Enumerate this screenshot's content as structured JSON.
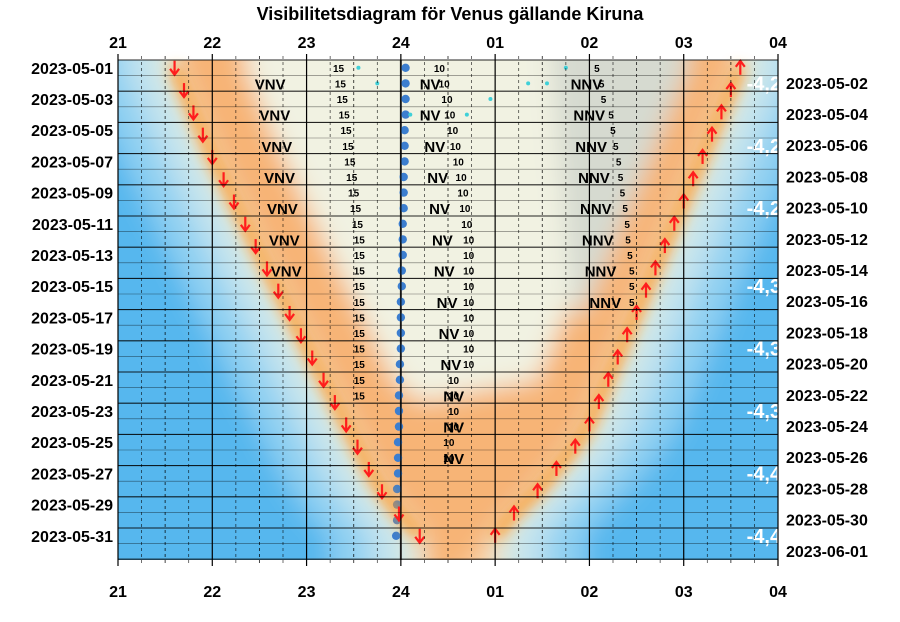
{
  "chart_data": {
    "type": "visibility-diagram",
    "title": "Visibilitetsdiagram för Venus gällande Kiruna",
    "hour_labels": [
      "21",
      "22",
      "23",
      "24",
      "01",
      "02",
      "03",
      "04"
    ],
    "left_dates": [
      "2023-05-01",
      "2023-05-03",
      "2023-05-05",
      "2023-05-07",
      "2023-05-09",
      "2023-05-11",
      "2023-05-13",
      "2023-05-15",
      "2023-05-17",
      "2023-05-19",
      "2023-05-21",
      "2023-05-23",
      "2023-05-25",
      "2023-05-27",
      "2023-05-29",
      "2023-05-31"
    ],
    "right_dates": [
      "2023-05-02",
      "2023-05-04",
      "2023-05-06",
      "2023-05-08",
      "2023-05-10",
      "2023-05-12",
      "2023-05-14",
      "2023-05-16",
      "2023-05-18",
      "2023-05-20",
      "2023-05-22",
      "2023-05-24",
      "2023-05-26",
      "2023-05-28",
      "2023-05-30",
      "2023-06-01"
    ],
    "sunset_hour": [
      21.6,
      21.7,
      21.8,
      21.9,
      22.0,
      22.12,
      22.23,
      22.35,
      22.46,
      22.58,
      22.7,
      22.82,
      22.94,
      23.06,
      23.18,
      23.3,
      23.42,
      23.54,
      23.66,
      23.8,
      23.98,
      24.2
    ],
    "sunrise_hour": [
      27.6,
      27.5,
      27.4,
      27.3,
      27.2,
      27.1,
      27.0,
      26.9,
      26.8,
      26.7,
      26.6,
      26.5,
      26.4,
      26.3,
      26.2,
      26.1,
      26.0,
      25.85,
      25.65,
      25.45,
      25.2,
      25.0
    ],
    "venus_set_hour": [
      24.05,
      24.05,
      24.05,
      24.05,
      24.04,
      24.04,
      24.04,
      24.03,
      24.03,
      24.03,
      24.02,
      24.02,
      24.02,
      24.01,
      24.01,
      24.0,
      24.0,
      24.0,
      24.0,
      23.99,
      23.99,
      23.98,
      23.98,
      23.98,
      23.97,
      23.97,
      23.97,
      23.96,
      23.96,
      23.96,
      23.95
    ],
    "directions": [
      {
        "label": "VNV",
        "hour": 22.45,
        "day": 2
      },
      {
        "label": "VNV",
        "hour": 22.5,
        "day": 4
      },
      {
        "label": "VNV",
        "hour": 22.52,
        "day": 6
      },
      {
        "label": "VNV",
        "hour": 22.55,
        "day": 8
      },
      {
        "label": "VNV",
        "hour": 22.58,
        "day": 10
      },
      {
        "label": "VNV",
        "hour": 22.6,
        "day": 12
      },
      {
        "label": "VNV",
        "hour": 22.62,
        "day": 14
      },
      {
        "label": "NV",
        "hour": 24.2,
        "day": 2
      },
      {
        "label": "NV",
        "hour": 24.2,
        "day": 4
      },
      {
        "label": "NV",
        "hour": 24.25,
        "day": 6
      },
      {
        "label": "NV",
        "hour": 24.28,
        "day": 8
      },
      {
        "label": "NV",
        "hour": 24.3,
        "day": 10
      },
      {
        "label": "NV",
        "hour": 24.33,
        "day": 12
      },
      {
        "label": "NV",
        "hour": 24.35,
        "day": 14
      },
      {
        "label": "NV",
        "hour": 24.38,
        "day": 16
      },
      {
        "label": "NV",
        "hour": 24.4,
        "day": 18
      },
      {
        "label": "NV",
        "hour": 24.42,
        "day": 20
      },
      {
        "label": "NV",
        "hour": 24.45,
        "day": 22
      },
      {
        "label": "NV",
        "hour": 24.45,
        "day": 24
      },
      {
        "label": "NV",
        "hour": 24.45,
        "day": 26
      },
      {
        "label": "NNV",
        "hour": 25.8,
        "day": 2
      },
      {
        "label": "NNV",
        "hour": 25.83,
        "day": 4
      },
      {
        "label": "NNV",
        "hour": 25.85,
        "day": 6
      },
      {
        "label": "NNV",
        "hour": 25.88,
        "day": 8
      },
      {
        "label": "NNV",
        "hour": 25.9,
        "day": 10
      },
      {
        "label": "NNV",
        "hour": 25.92,
        "day": 12
      },
      {
        "label": "NNV",
        "hour": 25.95,
        "day": 14
      },
      {
        "label": "NNV",
        "hour": 26.0,
        "day": 16
      }
    ],
    "altitudes": [
      {
        "label": "15",
        "hour": 23.28,
        "day": 1
      },
      {
        "label": "15",
        "hour": 23.3,
        "day": 2
      },
      {
        "label": "15",
        "hour": 23.32,
        "day": 3
      },
      {
        "label": "15",
        "hour": 23.34,
        "day": 4
      },
      {
        "label": "15",
        "hour": 23.36,
        "day": 5
      },
      {
        "label": "15",
        "hour": 23.38,
        "day": 6
      },
      {
        "label": "15",
        "hour": 23.4,
        "day": 7
      },
      {
        "label": "15",
        "hour": 23.42,
        "day": 8
      },
      {
        "label": "15",
        "hour": 23.44,
        "day": 9
      },
      {
        "label": "15",
        "hour": 23.46,
        "day": 10
      },
      {
        "label": "15",
        "hour": 23.48,
        "day": 11
      },
      {
        "label": "15",
        "hour": 23.5,
        "day": 12
      },
      {
        "label": "15",
        "hour": 23.5,
        "day": 13
      },
      {
        "label": "15",
        "hour": 23.5,
        "day": 14
      },
      {
        "label": "15",
        "hour": 23.5,
        "day": 15
      },
      {
        "label": "15",
        "hour": 23.5,
        "day": 16
      },
      {
        "label": "15",
        "hour": 23.5,
        "day": 17
      },
      {
        "label": "15",
        "hour": 23.5,
        "day": 18
      },
      {
        "label": "15",
        "hour": 23.5,
        "day": 19
      },
      {
        "label": "15",
        "hour": 23.5,
        "day": 20
      },
      {
        "label": "15",
        "hour": 23.5,
        "day": 21
      },
      {
        "label": "15",
        "hour": 23.5,
        "day": 22
      },
      {
        "label": "10",
        "hour": 24.35,
        "day": 1
      },
      {
        "label": "10",
        "hour": 24.4,
        "day": 2
      },
      {
        "label": "10",
        "hour": 24.43,
        "day": 3
      },
      {
        "label": "10",
        "hour": 24.46,
        "day": 4
      },
      {
        "label": "10",
        "hour": 24.49,
        "day": 5
      },
      {
        "label": "10",
        "hour": 24.52,
        "day": 6
      },
      {
        "label": "10",
        "hour": 24.55,
        "day": 7
      },
      {
        "label": "10",
        "hour": 24.58,
        "day": 8
      },
      {
        "label": "10",
        "hour": 24.6,
        "day": 9
      },
      {
        "label": "10",
        "hour": 24.62,
        "day": 10
      },
      {
        "label": "10",
        "hour": 24.64,
        "day": 11
      },
      {
        "label": "10",
        "hour": 24.66,
        "day": 12
      },
      {
        "label": "10",
        "hour": 24.66,
        "day": 13
      },
      {
        "label": "10",
        "hour": 24.66,
        "day": 14
      },
      {
        "label": "10",
        "hour": 24.66,
        "day": 15
      },
      {
        "label": "10",
        "hour": 24.66,
        "day": 16
      },
      {
        "label": "10",
        "hour": 24.66,
        "day": 17
      },
      {
        "label": "10",
        "hour": 24.66,
        "day": 18
      },
      {
        "label": "10",
        "hour": 24.66,
        "day": 19
      },
      {
        "label": "10",
        "hour": 24.66,
        "day": 20
      },
      {
        "label": "10",
        "hour": 24.5,
        "day": 21
      },
      {
        "label": "10",
        "hour": 24.5,
        "day": 22
      },
      {
        "label": "10",
        "hour": 24.5,
        "day": 23
      },
      {
        "label": "10",
        "hour": 24.5,
        "day": 24
      },
      {
        "label": "10",
        "hour": 24.45,
        "day": 25
      },
      {
        "label": "10",
        "hour": 24.45,
        "day": 26
      },
      {
        "label": "5",
        "hour": 26.05,
        "day": 1
      },
      {
        "label": "5",
        "hour": 26.1,
        "day": 2
      },
      {
        "label": "5",
        "hour": 26.12,
        "day": 3
      },
      {
        "label": "5",
        "hour": 26.2,
        "day": 4
      },
      {
        "label": "5",
        "hour": 26.22,
        "day": 5
      },
      {
        "label": "5",
        "hour": 26.25,
        "day": 6
      },
      {
        "label": "5",
        "hour": 26.28,
        "day": 7
      },
      {
        "label": "5",
        "hour": 26.3,
        "day": 8
      },
      {
        "label": "5",
        "hour": 26.32,
        "day": 9
      },
      {
        "label": "5",
        "hour": 26.35,
        "day": 10
      },
      {
        "label": "5",
        "hour": 26.37,
        "day": 11
      },
      {
        "label": "5",
        "hour": 26.38,
        "day": 12
      },
      {
        "label": "5",
        "hour": 26.4,
        "day": 13
      },
      {
        "label": "5",
        "hour": 26.42,
        "day": 14
      },
      {
        "label": "5",
        "hour": 26.42,
        "day": 15
      },
      {
        "label": "5",
        "hour": 26.42,
        "day": 16
      }
    ],
    "magnitudes": [
      {
        "label": "-4,2",
        "day": 2
      },
      {
        "label": "-4,2",
        "day": 6
      },
      {
        "label": "-4,2",
        "day": 10
      },
      {
        "label": "-4,3",
        "day": 15
      },
      {
        "label": "-4,3",
        "day": 19
      },
      {
        "label": "-4,3",
        "day": 23
      },
      {
        "label": "-4,4",
        "day": 27
      },
      {
        "label": "-4,4",
        "day": 31
      }
    ],
    "colors": {
      "night_sky": "#f1f2e2",
      "twilight_deep": "#f7b476",
      "day_sky": "#57b7ee",
      "sun_arrow": "#ff1d1d",
      "venus_dot": "#3c7ecf"
    }
  }
}
